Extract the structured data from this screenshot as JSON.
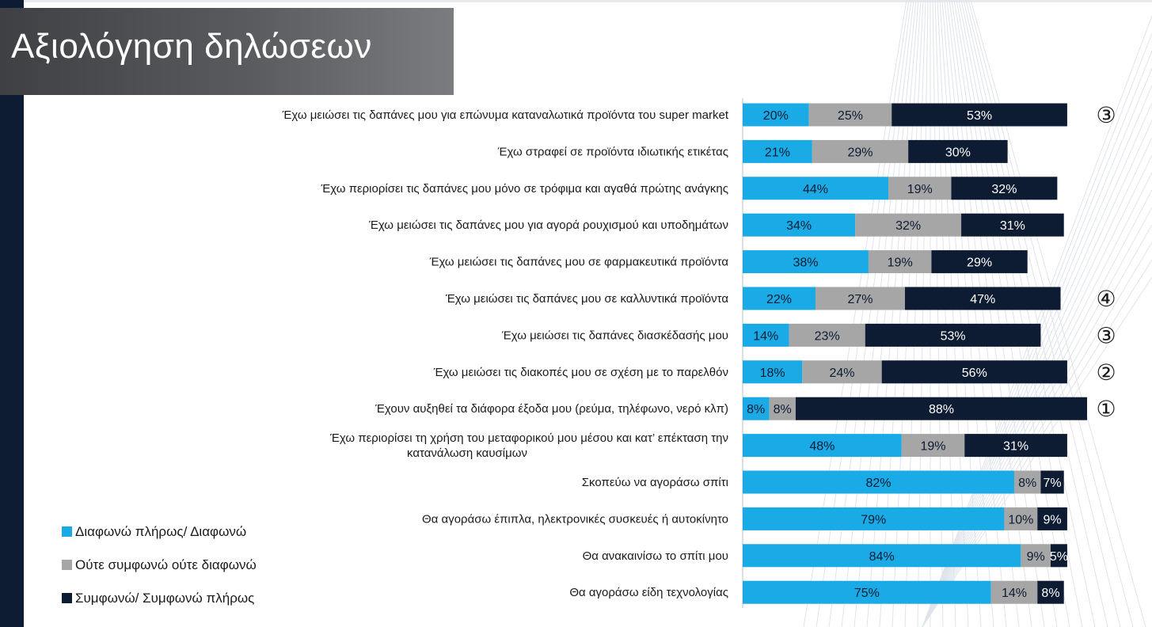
{
  "title": "Αξιολόγηση δηλώσεων",
  "colors": {
    "disagree": "#1aabe6",
    "neutral": "#a6a6a6",
    "agree": "#0d1b33",
    "sidebar": "#0d1b33"
  },
  "chart_data": {
    "type": "bar",
    "orientation": "horizontal",
    "stacked": true,
    "categories": [
      "Έχω μειώσει τις δαπάνες μου για επώνυμα καταναλωτικά προϊόντα του super market",
      "Έχω στραφεί σε προϊόντα ιδιωτικής ετικέτας",
      "Έχω περιορίσει τις δαπάνες μου μόνο σε τρόφιμα και αγαθά πρώτης ανάγκης",
      "Έχω μειώσει τις δαπάνες μου για αγορά ρουχισμού και υποδημάτων",
      "Έχω μειώσει τις δαπάνες μου σε φαρμακευτικά προϊόντα",
      "Έχω μειώσει τις δαπάνες μου σε καλλυντικά προϊόντα",
      "Έχω μειώσει τις δαπάνες διασκέδασής μου",
      "Έχω μειώσει τις διακοπές μου σε σχέση με το παρελθόν",
      "Έχουν αυξηθεί τα διάφορα έξοδα μου (ρεύμα, τηλέφωνο, νερό κλπ)",
      "Έχω περιορίσει τη χρήση του μεταφορικού μου μέσου και κατ’ επέκταση την κατανάλωση καυσίμων",
      "Σκοπεύω να αγοράσω σπίτι",
      "Θα αγοράσω έπιπλα, ηλεκτρονικές συσκευές ή αυτοκίνητο",
      "Θα ανακαινίσω το σπίτι μου",
      "Θα αγοράσω είδη τεχνολογίας"
    ],
    "series": [
      {
        "name": "Διαφωνώ πλήρως/ Διαφωνώ",
        "values": [
          20,
          21,
          44,
          34,
          38,
          22,
          14,
          18,
          8,
          48,
          82,
          79,
          84,
          75
        ]
      },
      {
        "name": "Ούτε συμφωνώ ούτε διαφωνώ",
        "values": [
          25,
          29,
          19,
          32,
          19,
          27,
          23,
          24,
          8,
          19,
          8,
          10,
          9,
          14
        ]
      },
      {
        "name": "Συμφωνώ/ Συμφωνώ πλήρως",
        "values": [
          53,
          30,
          32,
          31,
          29,
          47,
          53,
          56,
          88,
          31,
          7,
          9,
          5,
          8
        ]
      }
    ],
    "data_label_format": "{v}%",
    "rank_markers": [
      "③",
      "",
      "",
      "",
      "",
      "④",
      "③",
      "②",
      "①",
      "",
      "",
      "",
      "",
      ""
    ],
    "xlim": [
      0,
      104
    ],
    "grid": false,
    "legend_position": "bottom-left"
  }
}
